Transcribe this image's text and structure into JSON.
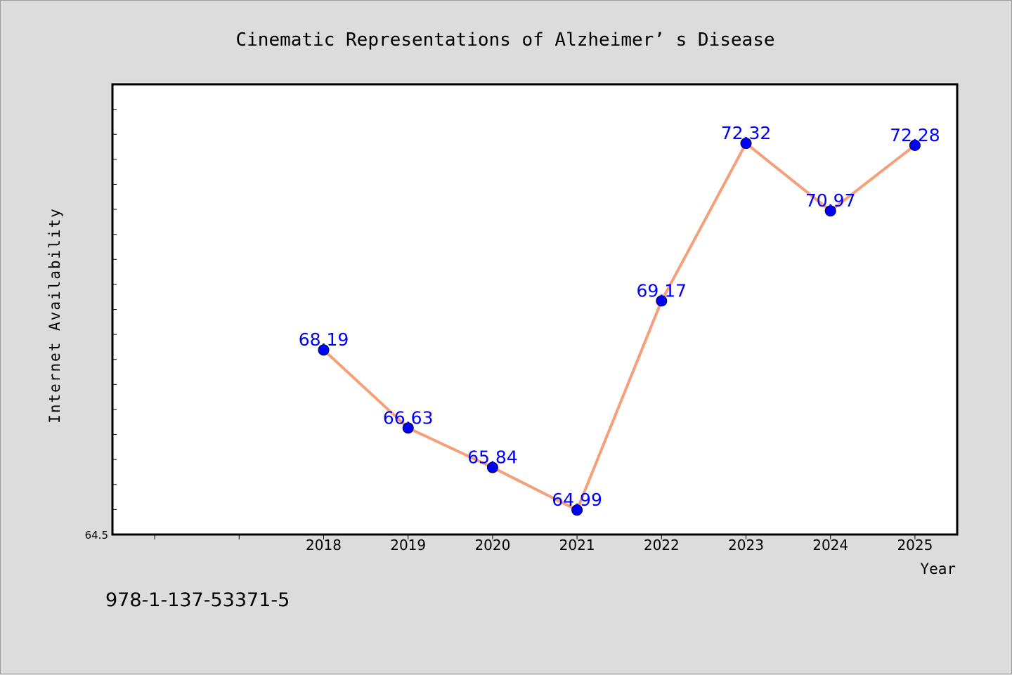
{
  "page": {
    "footer_code": "978-1-137-53371-5"
  },
  "chart_data": {
    "type": "line",
    "title": "Cinematic Representations of Alzheimer’ s Disease",
    "xlabel": "Year",
    "ylabel": "Internet Availability",
    "categories": [
      "2018",
      "2019",
      "2020",
      "2021",
      "2022",
      "2023",
      "2024",
      "2025"
    ],
    "series": [
      {
        "values": [
          68.19,
          66.63,
          65.84,
          64.99,
          69.17,
          72.32,
          70.97,
          72.28
        ],
        "labels": [
          "68.19",
          "66.63",
          "65.84",
          "64.99",
          "69.17",
          "72.32",
          "70.97",
          "72.28"
        ]
      }
    ],
    "xlim": [
      2015.5,
      2025.5
    ],
    "ylim": [
      64.5,
      73.5
    ],
    "yticks_labeled": [
      "64.5"
    ],
    "grid": false,
    "legend": "none",
    "colors": {
      "background": "#dcdcdc",
      "plot_area": "#ffffff",
      "line": "#f4a07a",
      "marker": "#0000ff",
      "data_label": "#0000ff"
    }
  }
}
